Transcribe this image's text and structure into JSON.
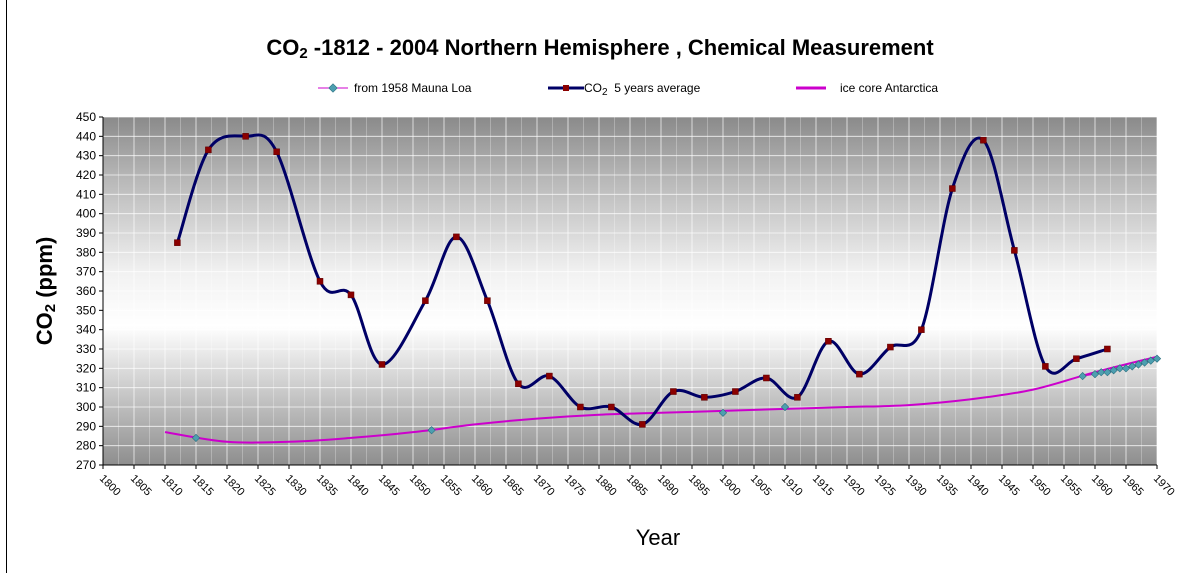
{
  "chart_data": {
    "type": "line",
    "title": {
      "prefix": "CO",
      "subscript": "2",
      "rest": " -1812 - 2004 Northern Hemisphere , Chemical Measurement"
    },
    "legend": {
      "placement": "top",
      "entries": [
        {
          "key": "mauna_loa",
          "label": "from 1958 Mauna Loa"
        },
        {
          "key": "avg",
          "prefix": "CO",
          "subscript": "2",
          "label": "  5 years average"
        },
        {
          "key": "ice",
          "label": "ice core Antarctica"
        }
      ]
    },
    "ylabel": {
      "prefix": "CO",
      "subscript": "2",
      "rest": " (ppm)"
    },
    "xlabel": "Year",
    "xlim": [
      1800,
      1970
    ],
    "ylim": [
      270,
      450
    ],
    "y_ticks": [
      270,
      280,
      290,
      300,
      310,
      320,
      330,
      340,
      350,
      360,
      370,
      380,
      390,
      400,
      410,
      420,
      430,
      440,
      450
    ],
    "x_ticks": [
      "1800",
      "1805",
      "1810",
      "1815",
      "1820",
      "1825",
      "1830",
      "1835",
      "1840",
      "1845",
      "1850",
      "1855",
      "1860",
      "1865",
      "1870",
      "1875",
      "1880",
      "1885",
      "1890",
      "1895",
      "1900",
      "1905",
      "1910",
      "1915",
      "1920",
      "1925",
      "1930",
      "1935",
      "1940",
      "1945",
      "1950",
      "1955",
      "1960",
      "1965",
      "1970"
    ],
    "grid": true,
    "series": [
      {
        "key": "avg",
        "color": "#000066",
        "marker_color": "#8b0000",
        "points": [
          [
            1812,
            385
          ],
          [
            1817,
            433
          ],
          [
            1823,
            440
          ],
          [
            1828,
            432
          ],
          [
            1835,
            365
          ],
          [
            1840,
            358
          ],
          [
            1845,
            322
          ],
          [
            1852,
            355
          ],
          [
            1857,
            388
          ],
          [
            1862,
            355
          ],
          [
            1867,
            312
          ],
          [
            1872,
            316
          ],
          [
            1877,
            300
          ],
          [
            1882,
            300
          ],
          [
            1887,
            291
          ],
          [
            1892,
            308
          ],
          [
            1897,
            305
          ],
          [
            1902,
            308
          ],
          [
            1907,
            315
          ],
          [
            1912,
            305
          ],
          [
            1917,
            334
          ],
          [
            1922,
            317
          ],
          [
            1927,
            331
          ],
          [
            1932,
            340
          ],
          [
            1937,
            413
          ],
          [
            1942,
            438
          ],
          [
            1947,
            381
          ],
          [
            1952,
            321
          ],
          [
            1957,
            325
          ],
          [
            1962,
            330
          ]
        ]
      },
      {
        "key": "mauna_loa",
        "color": "#4d9fb0",
        "points": [
          [
            1958,
            316
          ],
          [
            1960,
            317
          ],
          [
            1961,
            318
          ],
          [
            1962,
            318
          ],
          [
            1963,
            319
          ],
          [
            1964,
            320
          ],
          [
            1965,
            320
          ],
          [
            1966,
            321
          ],
          [
            1967,
            322
          ],
          [
            1968,
            323
          ],
          [
            1969,
            324
          ],
          [
            1970,
            325
          ]
        ]
      },
      {
        "key": "ice",
        "color": "#cc00cc",
        "points": [
          [
            1810,
            287
          ],
          [
            1820,
            282
          ],
          [
            1830,
            282
          ],
          [
            1840,
            284
          ],
          [
            1850,
            287
          ],
          [
            1860,
            291
          ],
          [
            1870,
            294
          ],
          [
            1880,
            296
          ],
          [
            1890,
            297
          ],
          [
            1900,
            298
          ],
          [
            1910,
            299
          ],
          [
            1920,
            300
          ],
          [
            1930,
            301
          ],
          [
            1940,
            304
          ],
          [
            1950,
            309
          ],
          [
            1960,
            318
          ],
          [
            1970,
            326
          ]
        ]
      },
      {
        "key": "ice_markers",
        "color": "#4d9fb0",
        "points": [
          [
            1815,
            284
          ],
          [
            1853,
            288
          ],
          [
            1900,
            297
          ],
          [
            1910,
            300
          ]
        ]
      }
    ]
  }
}
